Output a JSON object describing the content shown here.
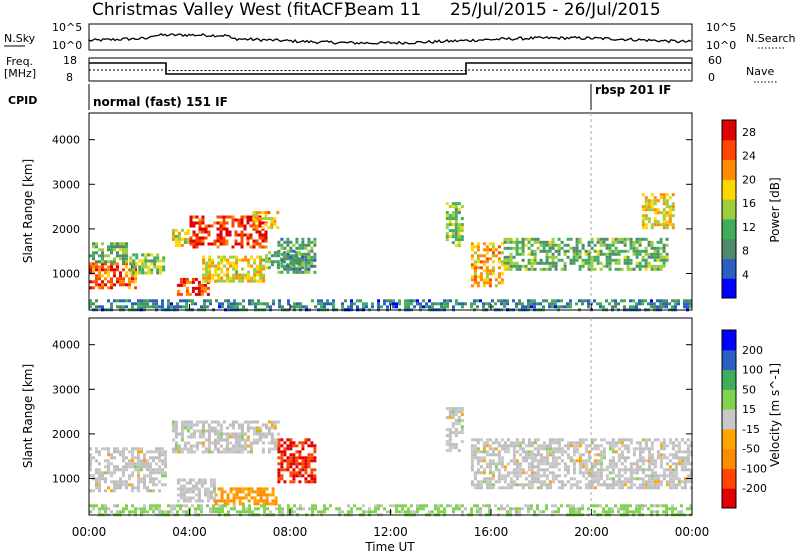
{
  "header": {
    "title": "Christmas Valley West (fitACF)",
    "beam": "Beam 11",
    "date_range": "25/Jul/2015 - 26/Jul/2015"
  },
  "noise_panel": {
    "left_label": "N.Sky",
    "right_label": "N.Search",
    "left_ticks": [
      "10^5",
      "10^0"
    ],
    "right_ticks": [
      "10^5",
      "10^0"
    ]
  },
  "freq_panel": {
    "left_label_line1": "Freq.",
    "left_label_line2": "[MHz]",
    "left_ticks": [
      "18",
      "8"
    ],
    "right_ticks": [
      "60",
      "0"
    ],
    "right_label": "Nave"
  },
  "cpid_panel": {
    "label": "CPID",
    "modes": [
      {
        "name": "normal (fast) 151 IF",
        "start_hour": 0
      },
      {
        "name": "rbsp 201 IF",
        "start_hour": 20
      }
    ]
  },
  "colors": {
    "power_scale": [
      "#0000ff",
      "#2a60c0",
      "#4f8a6a",
      "#3fae5a",
      "#9ccd3c",
      "#ffd700",
      "#ff8c00",
      "#ff4500",
      "#e00000"
    ],
    "velocity_scale": [
      "#e00000",
      "#ff4500",
      "#ff8c00",
      "#ffa500",
      "#c8c8c8",
      "#7fd34f",
      "#3fae5a",
      "#2a60c0",
      "#0000ff"
    ],
    "ground_scatter": "#bebebe"
  },
  "chart_data": [
    {
      "type": "heatmap",
      "name": "power",
      "xlabel": "Time UT",
      "ylabel": "Slant Range [km]",
      "x_ticks": [
        "00:00",
        "04:00",
        "08:00",
        "12:00",
        "16:00",
        "20:00",
        "00:00"
      ],
      "y_ticks": [
        "1000",
        "2000",
        "3000",
        "4000"
      ],
      "xlim": [
        0,
        24
      ],
      "ylim": [
        180,
        4600
      ],
      "colorbar_label": "Power [dB]",
      "colorbar_ticks": [
        "4",
        "8",
        "12",
        "16",
        "20",
        "24",
        "28"
      ],
      "colorbar_range": [
        0,
        30
      ],
      "regions": [
        {
          "t0": 0.0,
          "t1": 1.8,
          "r0": 700,
          "r1": 1250,
          "value": 24
        },
        {
          "t0": 0.0,
          "t1": 1.5,
          "r0": 1250,
          "r1": 1700,
          "value": 12
        },
        {
          "t0": 1.6,
          "t1": 3.0,
          "r0": 1000,
          "r1": 1450,
          "value": 14
        },
        {
          "t0": 3.3,
          "t1": 4.0,
          "r0": 1600,
          "r1": 2000,
          "value": 18
        },
        {
          "t0": 4.0,
          "t1": 7.0,
          "r0": 1600,
          "r1": 2300,
          "value": 27
        },
        {
          "t0": 6.5,
          "t1": 7.5,
          "r0": 2000,
          "r1": 2400,
          "value": 20
        },
        {
          "t0": 3.5,
          "t1": 4.8,
          "r0": 500,
          "r1": 900,
          "value": 26
        },
        {
          "t0": 4.5,
          "t1": 7.0,
          "r0": 800,
          "r1": 1400,
          "value": 18
        },
        {
          "t0": 7.0,
          "t1": 8.5,
          "r0": 1100,
          "r1": 1500,
          "value": 12
        },
        {
          "t0": 7.5,
          "t1": 9.0,
          "r0": 1000,
          "r1": 1800,
          "value": 10
        },
        {
          "t0": 14.2,
          "t1": 14.8,
          "r0": 1600,
          "r1": 2600,
          "value": 14
        },
        {
          "t0": 15.2,
          "t1": 16.5,
          "r0": 700,
          "r1": 1700,
          "value": 20
        },
        {
          "t0": 16.5,
          "t1": 23.0,
          "r0": 1100,
          "r1": 1800,
          "value": 12
        },
        {
          "t0": 22.0,
          "t1": 23.2,
          "r0": 2000,
          "r1": 2800,
          "value": 18
        },
        {
          "t0": 0.0,
          "t1": 24.0,
          "r0": 200,
          "r1": 420,
          "value": 8
        }
      ]
    },
    {
      "type": "heatmap",
      "name": "velocity",
      "xlabel": "Time UT",
      "ylabel": "Slant Range [km]",
      "x_ticks": [
        "00:00",
        "04:00",
        "08:00",
        "12:00",
        "16:00",
        "20:00",
        "00:00"
      ],
      "y_ticks": [
        "1000",
        "2000",
        "3000",
        "4000"
      ],
      "xlim": [
        0,
        24
      ],
      "ylim": [
        180,
        4600
      ],
      "colorbar_label": "Velocity [m s^-1]",
      "colorbar_ticks": [
        "-200",
        "-100",
        "-50",
        "-15",
        "15",
        "50",
        "100",
        "200"
      ],
      "colorbar_range": [
        -250,
        250
      ],
      "regions": [
        {
          "t0": 0.0,
          "t1": 3.0,
          "r0": 700,
          "r1": 1700,
          "value": 0
        },
        {
          "t0": 3.3,
          "t1": 7.5,
          "r0": 1600,
          "r1": 2300,
          "value": 0
        },
        {
          "t0": 3.5,
          "t1": 5.0,
          "r0": 500,
          "r1": 1000,
          "value": 0
        },
        {
          "t0": 5.0,
          "t1": 7.5,
          "r0": 400,
          "r1": 800,
          "value": -80
        },
        {
          "t0": 7.5,
          "t1": 9.0,
          "r0": 900,
          "r1": 1900,
          "value": -200
        },
        {
          "t0": 14.2,
          "t1": 14.8,
          "r0": 1600,
          "r1": 2600,
          "value": 0
        },
        {
          "t0": 15.2,
          "t1": 24.0,
          "r0": 800,
          "r1": 1900,
          "value": 0
        },
        {
          "t0": 0.0,
          "t1": 24.0,
          "r0": 200,
          "r1": 420,
          "value": 40
        }
      ]
    }
  ]
}
